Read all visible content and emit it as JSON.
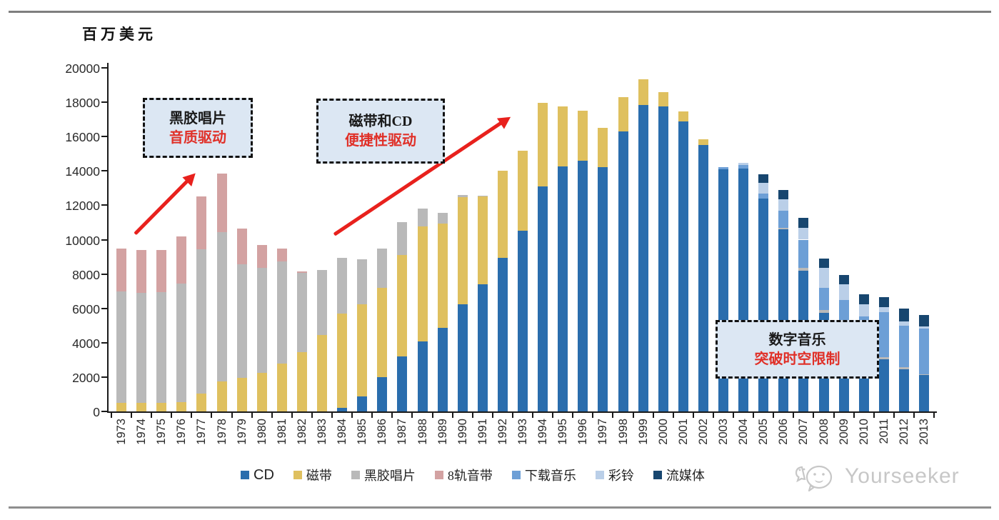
{
  "page": {
    "watermark_text": "Yourseeker"
  },
  "chart": {
    "unit_label": "百万美元",
    "annotations": [
      {
        "line1": "黑胶唱片",
        "line2": "音质驱动"
      },
      {
        "line1": "磁带和CD",
        "line2": "便捷性驱动"
      },
      {
        "line1": "数字音乐",
        "line2": "突破时空限制"
      }
    ]
  },
  "chart_data": {
    "type": "bar",
    "stacked": true,
    "title": "",
    "ylabel": "百万美元",
    "xlabel": "",
    "grid": false,
    "legend_position": "bottom",
    "ylim": [
      0,
      20000
    ],
    "ytick_step": 2000,
    "ytick_labels": [
      "0",
      "2000",
      "4000",
      "6000",
      "8000",
      "10000",
      "12000",
      "14000",
      "16000",
      "18000",
      "20000"
    ],
    "categories": [
      "1973",
      "1974",
      "1975",
      "1976",
      "1977",
      "1978",
      "1979",
      "1980",
      "1981",
      "1982",
      "1983",
      "1984",
      "1985",
      "1986",
      "1987",
      "1988",
      "1989",
      "1990",
      "1991",
      "1992",
      "1993",
      "1994",
      "1995",
      "1996",
      "1997",
      "1998",
      "1999",
      "2000",
      "2001",
      "2002",
      "2003",
      "2004",
      "2005",
      "2006",
      "2007",
      "2008",
      "2009",
      "2010",
      "2011",
      "2012",
      "2013"
    ],
    "series": [
      {
        "name": "CD",
        "color": "#2a6dad",
        "values": [
          0,
          0,
          0,
          0,
          0,
          0,
          0,
          0,
          0,
          0,
          0,
          200,
          870,
          1980,
          3190,
          4090,
          4870,
          6240,
          7390,
          8920,
          10510,
          13100,
          14250,
          14600,
          14200,
          16300,
          17850,
          17750,
          16900,
          15500,
          14100,
          14150,
          12400,
          10600,
          8200,
          5750,
          4750,
          3850,
          3050,
          2450,
          2100
        ]
      },
      {
        "name": "磁带",
        "color": "#dfc05f",
        "values": [
          500,
          500,
          500,
          550,
          1050,
          1750,
          1950,
          2250,
          2800,
          3450,
          4450,
          5500,
          5350,
          5200,
          5930,
          6670,
          6080,
          6250,
          5120,
          5080,
          4670,
          4850,
          3500,
          2900,
          2300,
          2000,
          1500,
          850,
          550,
          350,
          0,
          0,
          0,
          0,
          0,
          0,
          0,
          0,
          0,
          0,
          0
        ]
      },
      {
        "name": "黑胶唱片",
        "color": "#b9b9b9",
        "values": [
          6500,
          6400,
          6450,
          6900,
          8400,
          8700,
          6600,
          6100,
          5950,
          4600,
          3800,
          3250,
          2650,
          2290,
          1880,
          1040,
          600,
          100,
          50,
          0,
          0,
          0,
          0,
          0,
          0,
          0,
          0,
          0,
          0,
          0,
          0,
          0,
          0,
          100,
          150,
          150,
          100,
          100,
          120,
          120,
          80
        ]
      },
      {
        "name": "8轨音带",
        "color": "#d3a2a2",
        "values": [
          2500,
          2500,
          2450,
          2750,
          3050,
          3400,
          2100,
          1350,
          750,
          100,
          0,
          0,
          0,
          0,
          0,
          0,
          0,
          0,
          0,
          0,
          0,
          0,
          0,
          0,
          0,
          0,
          0,
          0,
          0,
          0,
          0,
          0,
          0,
          0,
          0,
          0,
          0,
          0,
          0,
          0,
          0
        ]
      },
      {
        "name": "下载音乐",
        "color": "#6d9fd6",
        "values": [
          0,
          0,
          0,
          0,
          0,
          0,
          0,
          0,
          0,
          0,
          0,
          0,
          0,
          0,
          0,
          0,
          0,
          0,
          0,
          0,
          0,
          0,
          0,
          0,
          0,
          0,
          0,
          0,
          0,
          0,
          100,
          200,
          300,
          1000,
          1650,
          1300,
          1650,
          1600,
          2600,
          2400,
          2650
        ]
      },
      {
        "name": "彩铃",
        "color": "#bacfe8",
        "values": [
          0,
          0,
          0,
          0,
          0,
          0,
          0,
          0,
          0,
          0,
          0,
          0,
          0,
          0,
          0,
          0,
          0,
          0,
          0,
          0,
          0,
          0,
          0,
          0,
          0,
          0,
          0,
          0,
          0,
          0,
          0,
          100,
          600,
          650,
          700,
          1150,
          900,
          700,
          280,
          250,
          100
        ]
      },
      {
        "name": "流媒体",
        "color": "#17466f",
        "values": [
          0,
          0,
          0,
          0,
          0,
          0,
          0,
          0,
          0,
          0,
          0,
          0,
          0,
          0,
          0,
          0,
          0,
          0,
          0,
          0,
          0,
          0,
          0,
          0,
          0,
          0,
          0,
          0,
          0,
          0,
          0,
          0,
          500,
          550,
          550,
          550,
          550,
          550,
          600,
          750,
          700
        ]
      }
    ]
  }
}
